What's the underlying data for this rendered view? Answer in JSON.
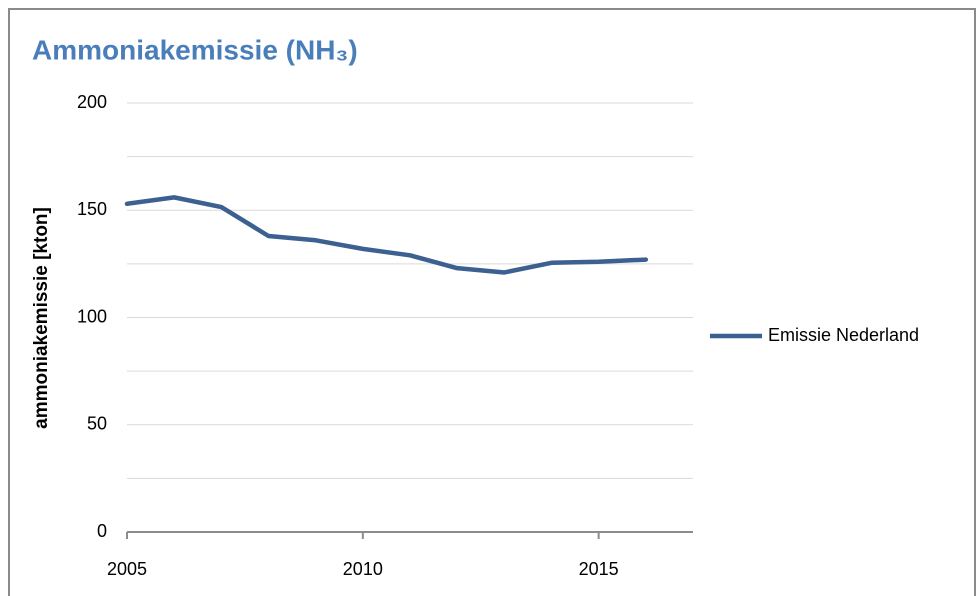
{
  "chart_data": {
    "type": "line",
    "title": "Ammoniakemissie  (NH₃)",
    "y_label": "ammoniakemissie [kton]",
    "x": [
      2005,
      2006,
      2007,
      2008,
      2009,
      2010,
      2011,
      2012,
      2013,
      2014,
      2015,
      2016
    ],
    "series": [
      {
        "name": "Emissie Nederland",
        "color": "#3c6090",
        "values": [
          153,
          156,
          151.5,
          138,
          136,
          132,
          129,
          123,
          121,
          125.5,
          126,
          127
        ]
      }
    ],
    "xlim": [
      2005,
      2017
    ],
    "xticks": [
      2005,
      2010,
      2015
    ],
    "ylim": [
      0,
      200
    ],
    "yticks": [
      0,
      50,
      100,
      150,
      200
    ],
    "minor_yticks": [
      25,
      75,
      125,
      175
    ],
    "grid": true,
    "legend": "right"
  }
}
